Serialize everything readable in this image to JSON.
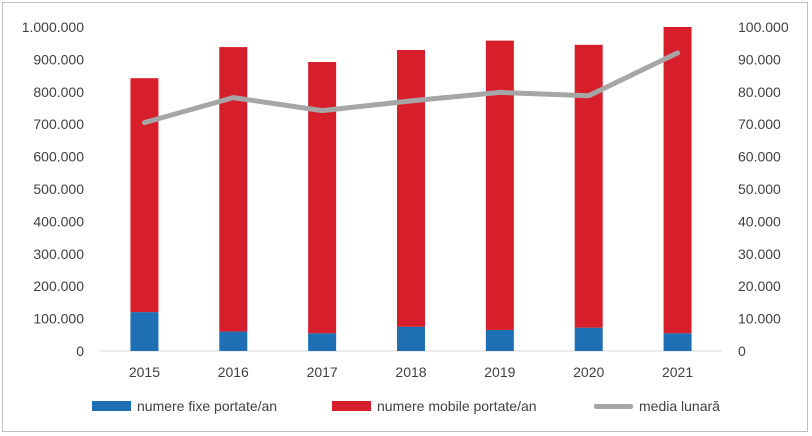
{
  "chart_data": {
    "type": "bar",
    "stacked": true,
    "categories": [
      "2015",
      "2016",
      "2017",
      "2018",
      "2019",
      "2020",
      "2021"
    ],
    "series": [
      {
        "name": "numere fixe portate/an",
        "type": "bar",
        "axis": "left",
        "color": "#1F6FB5",
        "values": [
          120000,
          60000,
          55000,
          75000,
          65000,
          72000,
          55000
        ]
      },
      {
        "name": "numere mobile portate/an",
        "type": "bar",
        "axis": "left",
        "color": "#D71F2B",
        "values": [
          722000,
          878000,
          837000,
          854000,
          893000,
          873000,
          945000
        ]
      },
      {
        "name": "media lunară",
        "type": "line",
        "axis": "right",
        "color": "#A6A6A6",
        "values": [
          70500,
          78200,
          74200,
          77200,
          79800,
          78800,
          92000
        ]
      }
    ],
    "y_left": {
      "min": 0,
      "max": 1000000,
      "ticks": [
        "0",
        "100.000",
        "200.000",
        "300.000",
        "400.000",
        "500.000",
        "600.000",
        "700.000",
        "800.000",
        "900.000",
        "1.000.000"
      ]
    },
    "y_right": {
      "min": 0,
      "max": 100000,
      "ticks": [
        "0",
        "10.000",
        "20.000",
        "30.000",
        "40.000",
        "50.000",
        "60.000",
        "70.000",
        "80.000",
        "90.000",
        "100.000"
      ]
    },
    "grid": false,
    "legend_position": "bottom"
  }
}
